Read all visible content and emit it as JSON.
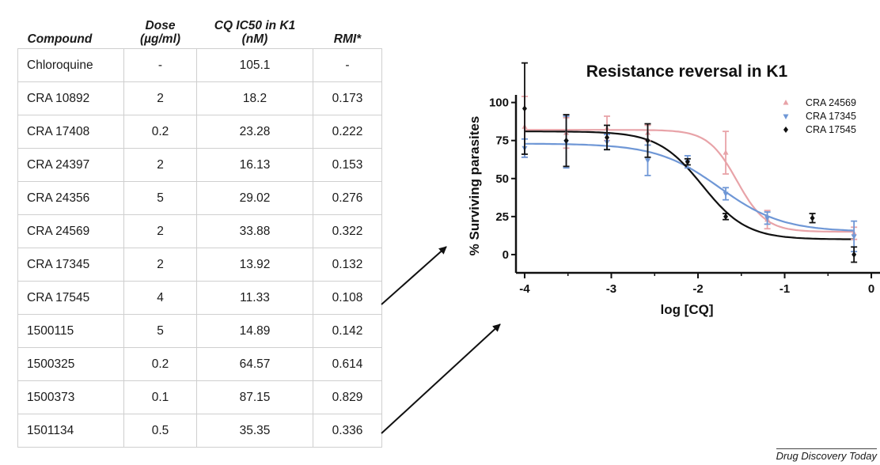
{
  "table": {
    "headers": [
      {
        "line1": "",
        "line2": "Compound"
      },
      {
        "line1": "Dose",
        "line2": "(µg/ml)"
      },
      {
        "line1": "CQ IC50 in K1",
        "line2": "(nM)"
      },
      {
        "line1": "",
        "line2": "RMI*"
      }
    ],
    "rows": [
      [
        "Chloroquine",
        "-",
        "105.1",
        "-"
      ],
      [
        "CRA 10892",
        "2",
        "18.2",
        "0.173"
      ],
      [
        "CRA 17408",
        "0.2",
        "23.28",
        "0.222"
      ],
      [
        "CRA 24397",
        "2",
        "16.13",
        "0.153"
      ],
      [
        "CRA 24356",
        "5",
        "29.02",
        "0.276"
      ],
      [
        "CRA 24569",
        "2",
        "33.88",
        "0.322"
      ],
      [
        "CRA 17345",
        "2",
        "13.92",
        "0.132"
      ],
      [
        "CRA 17545",
        "4",
        "11.33",
        "0.108"
      ],
      [
        "1500115",
        "5",
        "14.89",
        "0.142"
      ],
      [
        "1500325",
        "0.2",
        "64.57",
        "0.614"
      ],
      [
        "1500373",
        "0.1",
        "87.15",
        "0.829"
      ],
      [
        "1501134",
        "0.5",
        "35.35",
        "0.336"
      ]
    ]
  },
  "chart_data": {
    "type": "scatter",
    "title": "Resistance reversal in K1",
    "xlabel": "log [CQ]",
    "ylabel": "% Surviving parasites",
    "xlim": [
      -4.1,
      0.1
    ],
    "ylim": [
      -12,
      105
    ],
    "xticks": [
      -4,
      -3,
      -2,
      -1,
      0
    ],
    "yticks": [
      0,
      25,
      50,
      75,
      100
    ],
    "legend_position": "top-right",
    "series": [
      {
        "name": "CRA 24569",
        "color": "#e8a3a8",
        "marker": "triangle-up",
        "points": [
          {
            "x": -4,
            "y": 84,
            "err": 20
          },
          {
            "x": -3.52,
            "y": 80,
            "err": 10
          },
          {
            "x": -3.05,
            "y": 83,
            "err": 8
          },
          {
            "x": -2.58,
            "y": 80,
            "err": 5
          },
          {
            "x": -1.68,
            "y": 67,
            "err": 14
          },
          {
            "x": -1.2,
            "y": 23,
            "err": 6
          },
          {
            "x": -0.2,
            "y": 14,
            "err": 4
          }
        ],
        "fit": {
          "top": 82,
          "bottom": 15,
          "logIC50": -1.55,
          "hill": 2.6
        }
      },
      {
        "name": "CRA 17345",
        "color": "#6f97d6",
        "marker": "triangle-down",
        "points": [
          {
            "x": -4,
            "y": 70,
            "err": 6
          },
          {
            "x": -3.52,
            "y": 74,
            "err": 17
          },
          {
            "x": -3.05,
            "y": 74,
            "err": 5
          },
          {
            "x": -2.58,
            "y": 62,
            "err": 10
          },
          {
            "x": -2.12,
            "y": 61,
            "err": 4
          },
          {
            "x": -1.68,
            "y": 40,
            "err": 4
          },
          {
            "x": -1.2,
            "y": 24,
            "err": 4
          },
          {
            "x": -0.2,
            "y": 12,
            "err": 10
          }
        ],
        "fit": {
          "top": 73,
          "bottom": 15,
          "logIC50": -1.75,
          "hill": 1.2
        }
      },
      {
        "name": "CRA 17545",
        "color": "#111111",
        "marker": "diamond",
        "points": [
          {
            "x": -4,
            "y": 96,
            "err": 30
          },
          {
            "x": -3.52,
            "y": 75,
            "err": 17
          },
          {
            "x": -3.05,
            "y": 77,
            "err": 8
          },
          {
            "x": -2.58,
            "y": 75,
            "err": 11
          },
          {
            "x": -2.12,
            "y": 61,
            "err": 2
          },
          {
            "x": -1.68,
            "y": 25,
            "err": 2
          },
          {
            "x": -0.68,
            "y": 24,
            "err": 3
          },
          {
            "x": -0.2,
            "y": 0,
            "err": 5
          }
        ],
        "fit": {
          "top": 81,
          "bottom": 10,
          "logIC50": -1.95,
          "hill": 1.7
        }
      }
    ]
  },
  "source": "Drug Discovery Today"
}
